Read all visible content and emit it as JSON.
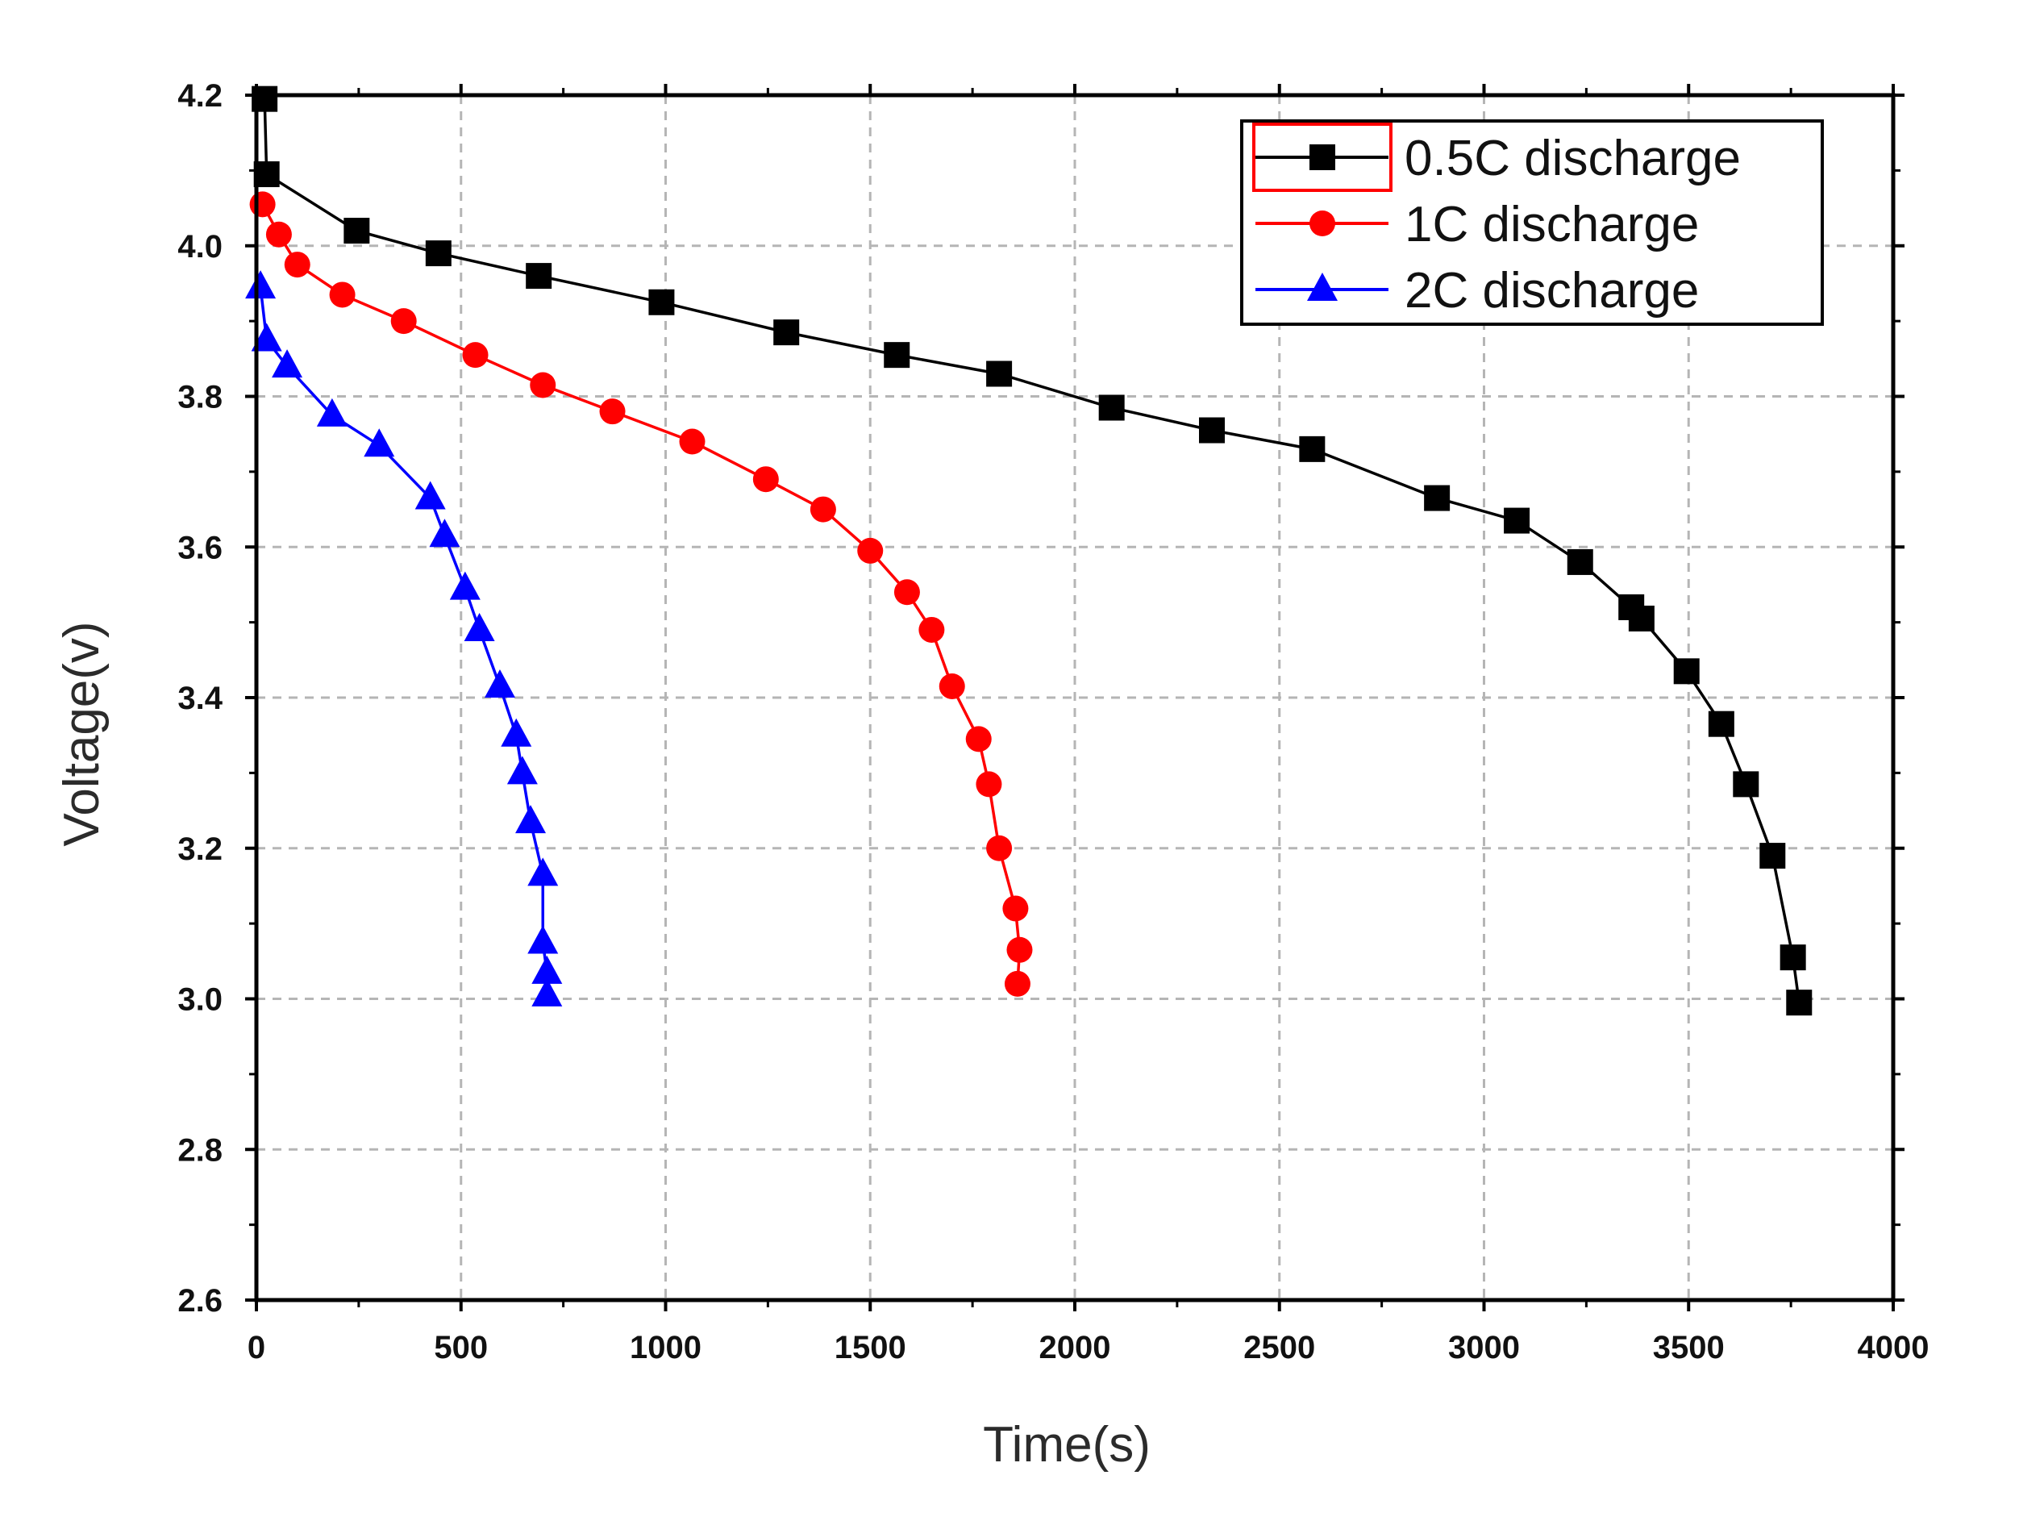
{
  "chart_data": {
    "type": "line",
    "title": "",
    "xlabel": "Time(s)",
    "ylabel": "Voltage(v)",
    "xlim": [
      0,
      4000
    ],
    "ylim": [
      2.6,
      4.2
    ],
    "x_ticks": [
      "0",
      "500",
      "1000",
      "1500",
      "2000",
      "2500",
      "3000",
      "3500",
      "4000"
    ],
    "y_ticks": [
      "2.6",
      "2.8",
      "3.0",
      "3.2",
      "3.4",
      "3.6",
      "3.8",
      "4.0",
      "4.2"
    ],
    "grid": true,
    "legend_position": "top-right",
    "series": [
      {
        "name": "0.5C discharge",
        "color": "#000000",
        "marker": "square",
        "x": [
          20,
          25,
          245,
          445,
          690,
          990,
          1295,
          1565,
          1815,
          2090,
          2335,
          2580,
          2885,
          3080,
          3235,
          3360,
          3385,
          3495,
          3580,
          3640,
          3705,
          3755,
          3770
        ],
        "y": [
          4.195,
          4.095,
          4.02,
          3.99,
          3.96,
          3.925,
          3.885,
          3.855,
          3.83,
          3.785,
          3.755,
          3.73,
          3.665,
          3.635,
          3.58,
          3.52,
          3.505,
          3.435,
          3.365,
          3.285,
          3.19,
          3.055,
          2.995
        ]
      },
      {
        "name": "1C discharge",
        "color": "#ff0000",
        "marker": "circle",
        "x": [
          15,
          55,
          100,
          210,
          360,
          535,
          700,
          870,
          1065,
          1245,
          1385,
          1500,
          1590,
          1650,
          1700,
          1765,
          1790,
          1815,
          1855,
          1865,
          1860
        ],
        "y": [
          4.055,
          4.015,
          3.975,
          3.935,
          3.9,
          3.855,
          3.815,
          3.78,
          3.74,
          3.69,
          3.65,
          3.595,
          3.54,
          3.49,
          3.415,
          3.345,
          3.285,
          3.2,
          3.12,
          3.065,
          3.02
        ]
      },
      {
        "name": "2C discharge",
        "color": "#0000ff",
        "marker": "triangle",
        "x": [
          10,
          25,
          75,
          185,
          300,
          425,
          460,
          510,
          545,
          595,
          635,
          650,
          670,
          700,
          700,
          710,
          710
        ],
        "y": [
          3.945,
          3.875,
          3.84,
          3.775,
          3.735,
          3.665,
          3.615,
          3.545,
          3.49,
          3.415,
          3.35,
          3.3,
          3.235,
          3.165,
          3.075,
          3.035,
          3.005
        ]
      }
    ]
  }
}
